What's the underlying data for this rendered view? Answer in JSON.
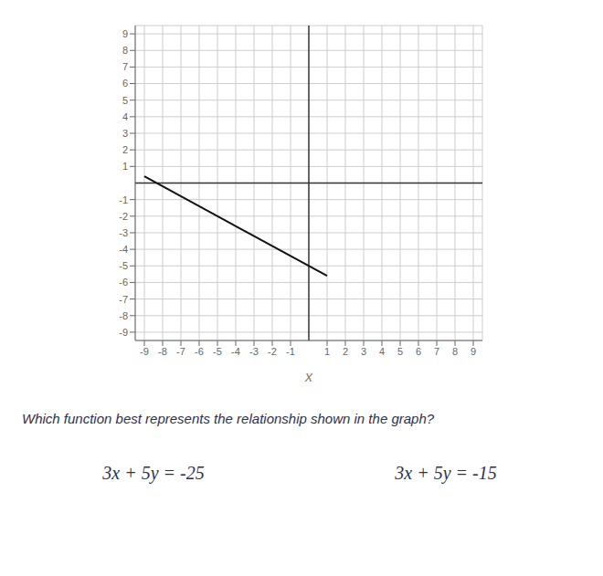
{
  "chart_data": {
    "type": "line",
    "x_label": "x",
    "annotations": [
      "Which function best represents the relationship shown in the graph?",
      "3x + 5y = -25",
      "3x + 5y = -15"
    ],
    "x": [
      -9,
      1
    ],
    "values": [
      0.4,
      -5.6
    ],
    "color": "#111111",
    "xlim": [
      -9.5,
      9.5
    ],
    "ylim": [
      -9.5,
      9.5
    ],
    "xticks": [
      -9,
      -8,
      -7,
      -6,
      -5,
      -4,
      -3,
      -2,
      -1,
      1,
      2,
      3,
      4,
      5,
      6,
      7,
      8,
      9
    ],
    "yticks": [
      -9,
      -8,
      -7,
      -6,
      -5,
      -4,
      -3,
      -2,
      -1,
      1,
      2,
      3,
      4,
      5,
      6,
      7,
      8,
      9
    ],
    "grid": true
  }
}
